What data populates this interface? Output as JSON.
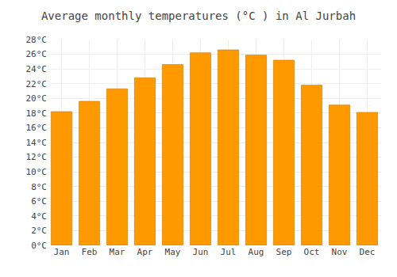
{
  "chart_data": {
    "type": "bar",
    "title": "Average monthly temperatures (°C ) in Al Jurbah",
    "categories": [
      "Jan",
      "Feb",
      "Mar",
      "Apr",
      "May",
      "Jun",
      "Jul",
      "Aug",
      "Sep",
      "Oct",
      "Nov",
      "Dec"
    ],
    "values": [
      18.2,
      19.6,
      21.3,
      22.8,
      24.6,
      26.2,
      26.6,
      25.9,
      25.2,
      21.8,
      19.1,
      18.1
    ],
    "color": "#FF9900",
    "ylim": [
      0,
      28
    ],
    "yticks": [
      {
        "value": 0,
        "label": "0°C"
      },
      {
        "value": 2,
        "label": "2°C"
      },
      {
        "value": 4,
        "label": "4°C"
      },
      {
        "value": 6,
        "label": "6°C"
      },
      {
        "value": 8,
        "label": "8°C"
      },
      {
        "value": 10,
        "label": "10°C"
      },
      {
        "value": 12,
        "label": "12°C"
      },
      {
        "value": 14,
        "label": "14°C"
      },
      {
        "value": 16,
        "label": "16°C"
      },
      {
        "value": 18,
        "label": "18°C"
      },
      {
        "value": 20,
        "label": "20°C"
      },
      {
        "value": 22,
        "label": "22°C"
      },
      {
        "value": 24,
        "label": "24°C"
      },
      {
        "value": 26,
        "label": "26°C"
      },
      {
        "value": 28,
        "label": "28°C"
      }
    ],
    "grid": true
  }
}
